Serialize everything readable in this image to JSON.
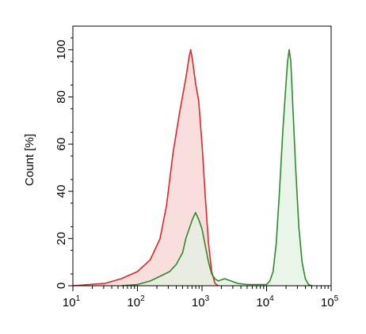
{
  "chart_data": {
    "type": "area",
    "title": "",
    "xlabel": "",
    "ylabel": "Count [%]",
    "xscale": "log",
    "xlim": [
      10,
      100000
    ],
    "ylim": [
      0,
      110
    ],
    "grid": false,
    "legend": "none",
    "x_ticks": [
      {
        "base": "10",
        "exp": "1",
        "value": 10
      },
      {
        "base": "10",
        "exp": "2",
        "value": 100
      },
      {
        "base": "10",
        "exp": "3",
        "value": 1000
      },
      {
        "base": "10",
        "exp": "4",
        "value": 10000
      },
      {
        "base": "10",
        "exp": "5",
        "value": 100000
      }
    ],
    "y_ticks": [
      {
        "label": "0",
        "value": 0
      },
      {
        "label": "20",
        "value": 20
      },
      {
        "label": "40",
        "value": 40
      },
      {
        "label": "60",
        "value": 60
      },
      {
        "label": "80",
        "value": 80
      },
      {
        "label": "100",
        "value": 100
      }
    ],
    "series": [
      {
        "color": "#e8232a",
        "fill": "#f9dede",
        "points": [
          [
            10,
            0
          ],
          [
            17.8,
            0.5
          ],
          [
            31.6,
            1
          ],
          [
            56.2,
            3
          ],
          [
            100,
            6
          ],
          [
            158,
            11
          ],
          [
            224,
            20
          ],
          [
            282,
            34
          ],
          [
            355,
            56
          ],
          [
            447,
            73
          ],
          [
            562,
            88
          ],
          [
            631,
            97
          ],
          [
            668,
            100
          ],
          [
            708,
            96
          ],
          [
            794,
            86
          ],
          [
            891,
            78
          ],
          [
            1000,
            60
          ],
          [
            1122,
            38
          ],
          [
            1259,
            18
          ],
          [
            1413,
            6
          ],
          [
            1585,
            1
          ],
          [
            1778,
            0
          ]
        ]
      },
      {
        "color": "#2e8a2e",
        "fill": "#e3f2e1",
        "points": [
          [
            56.2,
            0
          ],
          [
            100,
            0.5
          ],
          [
            158,
            2
          ],
          [
            224,
            4
          ],
          [
            316,
            6
          ],
          [
            398,
            9
          ],
          [
            501,
            14
          ],
          [
            562,
            20
          ],
          [
            631,
            24
          ],
          [
            708,
            28
          ],
          [
            794,
            31
          ],
          [
            891,
            28
          ],
          [
            1000,
            24
          ],
          [
            1122,
            17
          ],
          [
            1259,
            10
          ],
          [
            1413,
            5
          ],
          [
            1585,
            3
          ],
          [
            1778,
            2
          ],
          [
            2239,
            3
          ],
          [
            2818,
            2
          ],
          [
            3548,
            1
          ],
          [
            5012,
            0.5
          ],
          [
            7079,
            0.5
          ],
          [
            10000,
            0.5
          ],
          [
            11220,
            2
          ],
          [
            12590,
            6
          ],
          [
            14130,
            18
          ],
          [
            15850,
            40
          ],
          [
            17780,
            65
          ],
          [
            19950,
            85
          ],
          [
            21130,
            95
          ],
          [
            22390,
            100
          ],
          [
            23710,
            95
          ],
          [
            25120,
            80
          ],
          [
            28180,
            50
          ],
          [
            31620,
            25
          ],
          [
            35480,
            10
          ],
          [
            39810,
            3
          ],
          [
            44670,
            0.5
          ],
          [
            50120,
            0
          ]
        ]
      }
    ]
  }
}
